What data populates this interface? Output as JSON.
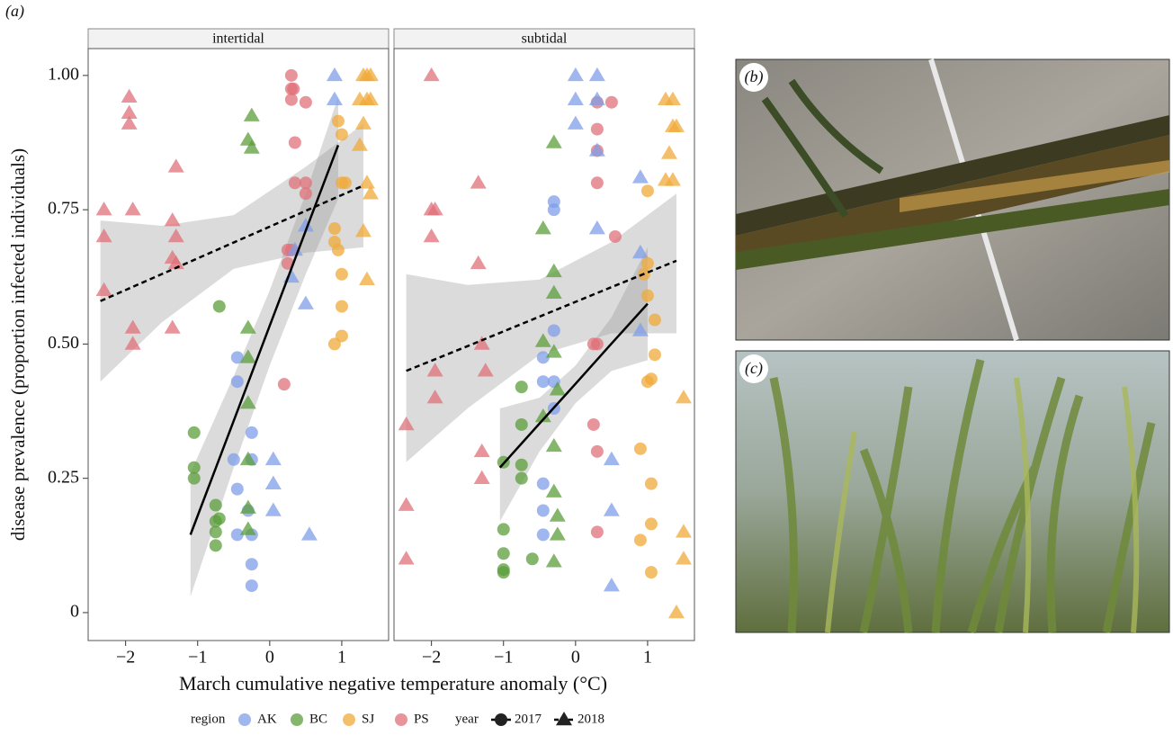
{
  "figure_label": "(a)",
  "photos": [
    {
      "label": "(b)"
    },
    {
      "label": "(c)"
    }
  ],
  "chart_data": {
    "type": "scatter",
    "x_label": "March cumulative negative temperature anomaly (°C)",
    "y_label": "disease prevalence (proportion infected individuals)",
    "xlim": [
      -2.52,
      1.65
    ],
    "ylim": [
      -0.052,
      1.05
    ],
    "xticks": [
      {
        "value": -2,
        "label": "−2"
      },
      {
        "value": -1,
        "label": "−1"
      },
      0,
      1
    ],
    "yticks": [
      0,
      0.25,
      {
        "value": 0.5,
        "label": "0.50"
      },
      0.75,
      {
        "value": 1,
        "label": "1.00"
      }
    ],
    "legend": {
      "region_title": "region",
      "regions": [
        {
          "name": "AK",
          "color": "#7f9de8"
        },
        {
          "name": "BC",
          "color": "#5b9e3a"
        },
        {
          "name": "SJ",
          "color": "#f0a93a"
        },
        {
          "name": "PS",
          "color": "#e0707a"
        }
      ],
      "year_title": "year",
      "years": [
        {
          "name": "2017",
          "marker": "circle",
          "dash": false
        },
        {
          "name": "2018",
          "marker": "triangle",
          "dash": true
        }
      ]
    },
    "panels": [
      {
        "label": "intertidal",
        "series": [
          {
            "region": "PS",
            "year": "2018",
            "x": [
              -2.3,
              -2.3,
              -2.3,
              -1.95,
              -1.95,
              -1.95,
              -1.9,
              -1.9,
              -1.9,
              -1.3,
              -1.35,
              -1.3,
              -1.35,
              -1.3,
              -1.35
            ],
            "values": [
              0.75,
              0.7,
              0.6,
              0.96,
              0.93,
              0.91,
              0.75,
              0.53,
              0.5,
              0.83,
              0.73,
              0.7,
              0.66,
              0.65,
              0.53
            ]
          },
          {
            "region": "PS",
            "year": "2017",
            "x": [
              0.3,
              0.3,
              0.33,
              0.3,
              0.5,
              0.35,
              0.35,
              0.5,
              0.5,
              0.25,
              0.3,
              0.25,
              0.2
            ],
            "values": [
              1.0,
              0.975,
              0.975,
              0.955,
              0.95,
              0.875,
              0.8,
              0.8,
              0.78,
              0.675,
              0.675,
              0.65,
              0.425
            ]
          },
          {
            "region": "AK",
            "year": "2017",
            "x": [
              -0.45,
              -0.45,
              -0.25,
              -0.5,
              -0.25,
              -0.45,
              -0.3,
              -0.45,
              -0.25,
              -0.25,
              -0.25
            ],
            "values": [
              0.475,
              0.43,
              0.335,
              0.285,
              0.285,
              0.23,
              0.19,
              0.145,
              0.145,
              0.09,
              0.05
            ]
          },
          {
            "region": "AK",
            "year": "2018",
            "x": [
              0.9,
              0.9,
              0.5,
              0.35,
              0.3,
              0.5,
              0.05,
              0.05,
              0.05,
              0.55
            ],
            "values": [
              1.0,
              0.955,
              0.72,
              0.675,
              0.625,
              0.575,
              0.285,
              0.24,
              0.19,
              0.145
            ]
          },
          {
            "region": "BC",
            "year": "2017",
            "x": [
              -1.05,
              -1.05,
              -1.05,
              -0.7,
              -0.75,
              -0.7,
              -0.75,
              -0.75,
              -0.75
            ],
            "values": [
              0.335,
              0.27,
              0.25,
              0.57,
              0.2,
              0.175,
              0.17,
              0.15,
              0.125
            ]
          },
          {
            "region": "BC",
            "year": "2018",
            "x": [
              -0.25,
              -0.3,
              -0.25,
              -0.3,
              -0.3,
              -0.3,
              -0.3,
              -0.3,
              -0.3
            ],
            "values": [
              0.925,
              0.88,
              0.865,
              0.53,
              0.475,
              0.39,
              0.285,
              0.195,
              0.155
            ]
          },
          {
            "region": "SJ",
            "year": "2017",
            "x": [
              0.95,
              1.0,
              1.0,
              1.05,
              0.9,
              0.9,
              0.95,
              1.0,
              1.0,
              1.0,
              0.9
            ],
            "values": [
              0.915,
              0.89,
              0.8,
              0.8,
              0.715,
              0.69,
              0.675,
              0.63,
              0.57,
              0.515,
              0.5
            ]
          },
          {
            "region": "SJ",
            "year": "2018",
            "x": [
              1.3,
              1.35,
              1.4,
              1.25,
              1.35,
              1.4,
              1.3,
              1.25,
              1.35,
              1.4,
              1.3,
              1.35
            ],
            "values": [
              1.0,
              1.0,
              1.0,
              0.955,
              0.955,
              0.955,
              0.91,
              0.87,
              0.8,
              0.78,
              0.71,
              0.62
            ]
          }
        ],
        "fits": [
          {
            "year": "2017",
            "x": [
              -1.1,
              -0.5,
              0,
              0.5,
              0.95
            ],
            "values": [
              0.145,
              0.357,
              0.534,
              0.711,
              0.87
            ],
            "lower": [
              0.03,
              0.27,
              0.46,
              0.63,
              0.77
            ],
            "upper": [
              0.26,
              0.44,
              0.6,
              0.78,
              0.96
            ]
          },
          {
            "year": "2018",
            "x": [
              -2.35,
              -1.5,
              -0.5,
              0.5,
              1.3
            ],
            "values": [
              0.58,
              0.63,
              0.689,
              0.748,
              0.795
            ],
            "lower": [
              0.43,
              0.54,
              0.64,
              0.67,
              0.68
            ],
            "upper": [
              0.73,
              0.72,
              0.74,
              0.83,
              0.91
            ]
          }
        ]
      },
      {
        "label": "subtidal",
        "series": [
          {
            "region": "PS",
            "year": "2018",
            "x": [
              -2.0,
              -1.95,
              -2.0,
              -2.0,
              -1.95,
              -1.95,
              -1.35,
              -1.35,
              -1.3,
              -1.25,
              -1.3,
              -1.3,
              -2.35,
              -2.35,
              -2.35
            ],
            "values": [
              1.0,
              0.75,
              0.75,
              0.7,
              0.45,
              0.4,
              0.8,
              0.65,
              0.5,
              0.45,
              0.3,
              0.25,
              0.35,
              0.2,
              0.1
            ]
          },
          {
            "region": "PS",
            "year": "2017",
            "x": [
              0.3,
              0.5,
              0.3,
              0.3,
              0.3,
              0.55,
              0.3,
              0.25,
              0.25,
              0.3,
              0.3
            ],
            "values": [
              0.95,
              0.95,
              0.9,
              0.86,
              0.8,
              0.7,
              0.5,
              0.5,
              0.35,
              0.3,
              0.15
            ]
          },
          {
            "region": "AK",
            "year": "2017",
            "x": [
              -0.3,
              -0.3,
              -0.3,
              -0.45,
              -0.45,
              -0.3,
              -0.3,
              -0.45,
              -0.45,
              -0.45
            ],
            "values": [
              0.765,
              0.75,
              0.525,
              0.475,
              0.43,
              0.43,
              0.38,
              0.24,
              0.19,
              0.145
            ]
          },
          {
            "region": "AK",
            "year": "2018",
            "x": [
              0.0,
              0.3,
              0.0,
              0.3,
              0.0,
              0.3,
              0.3,
              0.9,
              0.9,
              0.9,
              0.5,
              0.5,
              0.5
            ],
            "values": [
              1.0,
              1.0,
              0.955,
              0.955,
              0.91,
              0.86,
              0.715,
              0.81,
              0.67,
              0.525,
              0.285,
              0.19,
              0.05
            ]
          },
          {
            "region": "BC",
            "year": "2017",
            "x": [
              -0.75,
              -0.75,
              -0.75,
              -0.75,
              -1.0,
              -1.0,
              -1.0,
              -1.0,
              -1.0,
              -0.6
            ],
            "values": [
              0.42,
              0.35,
              0.275,
              0.25,
              0.28,
              0.155,
              0.11,
              0.075,
              0.08,
              0.1
            ]
          },
          {
            "region": "BC",
            "year": "2018",
            "x": [
              -0.3,
              -0.45,
              -0.3,
              -0.3,
              -0.45,
              -0.3,
              -0.25,
              -0.45,
              -0.3,
              -0.3,
              -0.25,
              -0.25,
              -0.3
            ],
            "values": [
              0.875,
              0.715,
              0.635,
              0.595,
              0.505,
              0.485,
              0.415,
              0.365,
              0.31,
              0.225,
              0.18,
              0.145,
              0.095
            ]
          },
          {
            "region": "SJ",
            "year": "2017",
            "x": [
              1.0,
              1.0,
              0.95,
              1.0,
              1.1,
              1.1,
              1.0,
              1.05,
              0.9,
              1.05,
              1.05,
              0.9,
              1.05
            ],
            "values": [
              0.785,
              0.65,
              0.63,
              0.59,
              0.545,
              0.48,
              0.43,
              0.435,
              0.305,
              0.24,
              0.165,
              0.135,
              0.075
            ]
          },
          {
            "region": "SJ",
            "year": "2018",
            "x": [
              1.25,
              1.35,
              1.35,
              1.4,
              1.3,
              1.25,
              1.35,
              1.5,
              1.5,
              1.5,
              1.4
            ],
            "values": [
              0.955,
              0.955,
              0.905,
              0.905,
              0.855,
              0.805,
              0.805,
              0.4,
              0.15,
              0.1,
              0.0
            ]
          }
        ],
        "fits": [
          {
            "year": "2017",
            "x": [
              -1.05,
              -0.5,
              0,
              0.5,
              1.0
            ],
            "values": [
              0.27,
              0.352,
              0.426,
              0.501,
              0.575
            ],
            "lower": [
              0.17,
              0.3,
              0.39,
              0.45,
              0.47
            ],
            "upper": [
              0.38,
              0.4,
              0.46,
              0.55,
              0.68
            ]
          },
          {
            "year": "2018",
            "x": [
              -2.35,
              -1.5,
              -0.5,
              0.5,
              1.4
            ],
            "values": [
              0.45,
              0.496,
              0.551,
              0.606,
              0.655
            ],
            "lower": [
              0.28,
              0.38,
              0.48,
              0.52,
              0.52
            ],
            "upper": [
              0.63,
              0.61,
              0.62,
              0.69,
              0.78
            ]
          }
        ]
      }
    ]
  }
}
